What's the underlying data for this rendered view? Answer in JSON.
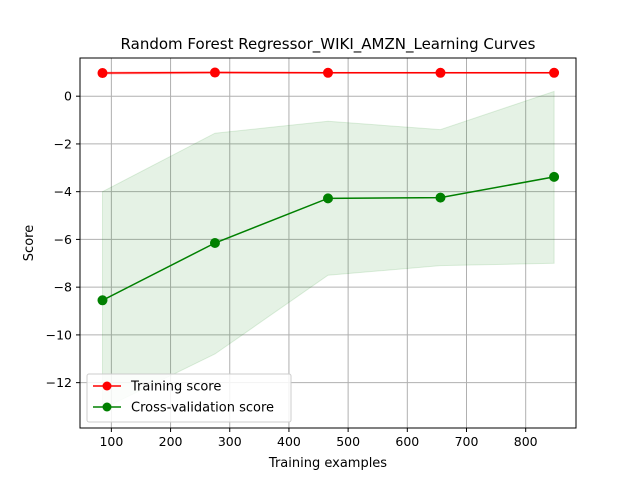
{
  "chart_data": {
    "type": "line",
    "title": "Random Forest Regressor_WIKI_AMZN_Learning Curves",
    "xlabel": "Training examples",
    "ylabel": "Score",
    "xlim": [
      47,
      885
    ],
    "ylim": [
      -13.9,
      1.6
    ],
    "xticks": [
      100,
      200,
      300,
      400,
      500,
      600,
      700,
      800
    ],
    "xtick_labels": [
      "100",
      "200",
      "300",
      "400",
      "500",
      "600",
      "700",
      "800"
    ],
    "yticks": [
      0,
      -2,
      -4,
      -6,
      -8,
      -10,
      -12
    ],
    "ytick_labels": [
      "0",
      "−2",
      "−4",
      "−6",
      "−8",
      "−10",
      "−12"
    ],
    "grid": true,
    "legend_position": "lower-left",
    "x": [
      85,
      275,
      466,
      656,
      848
    ],
    "series": [
      {
        "name": "Training score",
        "color": "#ff0000",
        "values": [
          0.97,
          0.99,
          0.98,
          0.98,
          0.98
        ],
        "band_lower": [
          0.92,
          0.95,
          0.95,
          0.95,
          0.95
        ],
        "band_upper": [
          1.02,
          1.03,
          1.01,
          1.01,
          1.01
        ]
      },
      {
        "name": "Cross-validation score",
        "color": "#008000",
        "band_color": "#008000",
        "values": [
          -8.55,
          -6.15,
          -4.28,
          -4.25,
          -3.38
        ],
        "band_lower": [
          -13.1,
          -10.8,
          -7.5,
          -7.1,
          -7.0
        ],
        "band_upper": [
          -4.0,
          -1.55,
          -1.05,
          -1.4,
          0.2
        ]
      }
    ]
  }
}
